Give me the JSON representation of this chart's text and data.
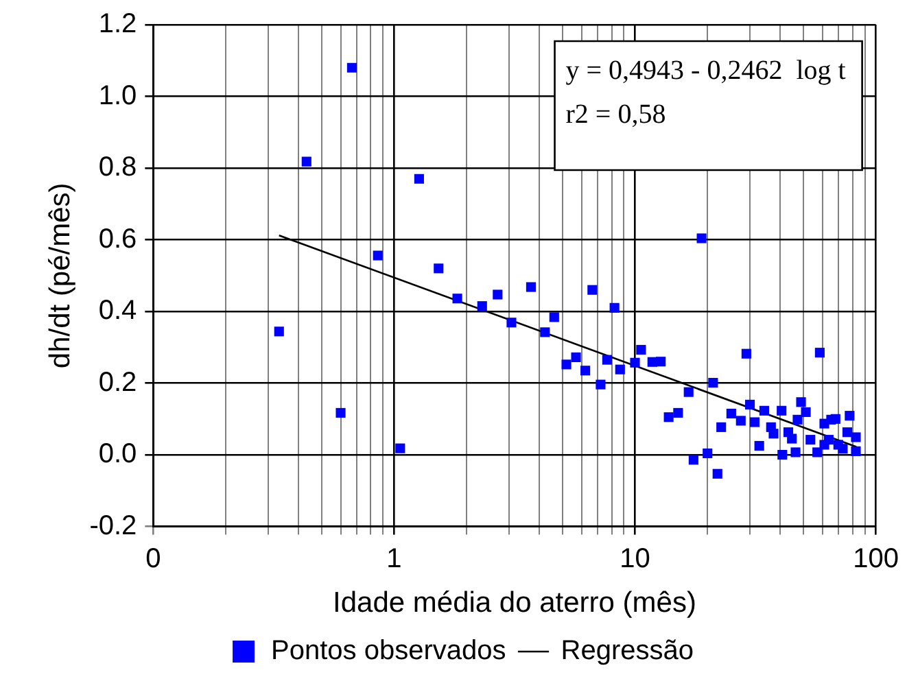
{
  "chart_data": {
    "type": "scatter",
    "xlabel": "Idade média do aterro (mês)",
    "ylabel": "dh/dt (pé/mês)",
    "log": "x",
    "grid": true,
    "legend": "bottom",
    "marker": "square",
    "xlim": [
      0.1,
      100
    ],
    "xticks": [
      {
        "value": 0.1,
        "label": "0"
      },
      {
        "value": 0.2,
        "label": null
      },
      {
        "value": 0.3,
        "label": null
      },
      {
        "value": 0.4,
        "label": null
      },
      {
        "value": 0.5,
        "label": null
      },
      {
        "value": 0.6,
        "label": null
      },
      {
        "value": 0.7,
        "label": null
      },
      {
        "value": 0.8,
        "label": null
      },
      {
        "value": 0.9,
        "label": null
      },
      1,
      {
        "value": 2,
        "label": null
      },
      {
        "value": 3,
        "label": null
      },
      {
        "value": 4,
        "label": null
      },
      {
        "value": 5,
        "label": null
      },
      {
        "value": 6,
        "label": null
      },
      {
        "value": 7,
        "label": null
      },
      {
        "value": 8,
        "label": null
      },
      {
        "value": 9,
        "label": null
      },
      10,
      {
        "value": 20,
        "label": null
      },
      {
        "value": 30,
        "label": null
      },
      {
        "value": 40,
        "label": null
      },
      {
        "value": 50,
        "label": null
      },
      {
        "value": 60,
        "label": null
      },
      {
        "value": 70,
        "label": null
      },
      {
        "value": 80,
        "label": null
      },
      {
        "value": 90,
        "label": null
      },
      100
    ],
    "ylim": [
      -0.2,
      1.2
    ],
    "yticks": [
      -0.2,
      {
        "value": 0,
        "label": "0.0"
      },
      0.2,
      0.4,
      0.6,
      0.8,
      {
        "value": 1,
        "label": "1.0"
      },
      1.2
    ],
    "annotations": [
      "y = 0,4943 - 0,2462  log t",
      "r2 = 0,58"
    ],
    "series": [
      {
        "name": "Pontos observados",
        "color": "#0000ff",
        "x": [
          0.668,
          0.433,
          0.856,
          0.333,
          0.6,
          1.06,
          1.27,
          1.53,
          1.83,
          2.32,
          2.69,
          3.07,
          3.7,
          4.62,
          4.23,
          6.65,
          8.22,
          5.19,
          5.69,
          6.22,
          7.2,
          7.66,
          8.67,
          10.0,
          10.6,
          11.8,
          12.8,
          18.9,
          29.0,
          58.5,
          16.7,
          21.1,
          13.8,
          15.1,
          17.5,
          20.0,
          22.0,
          22.8,
          25.1,
          27.5,
          30.0,
          31.4,
          34.4,
          32.8,
          36.7,
          40.6,
          40.9,
          43.3,
          46.4,
          48.9,
          51.2,
          47.3,
          53.5,
          57.1,
          61.1,
          65.2,
          68.0,
          63.7,
          69.8,
          77.8,
          76.1,
          82.6,
          82.6,
          72.9,
          61.1,
          44.8,
          37.6
        ],
        "values": [
          1.08,
          0.818,
          0.556,
          0.344,
          0.117,
          0.018,
          0.77,
          0.52,
          0.436,
          0.415,
          0.447,
          0.369,
          0.468,
          0.384,
          0.342,
          0.46,
          0.41,
          0.252,
          0.272,
          0.235,
          0.196,
          0.265,
          0.238,
          0.257,
          0.293,
          0.259,
          0.26,
          0.604,
          0.282,
          0.285,
          0.175,
          0.201,
          0.105,
          0.117,
          -0.014,
          0.004,
          -0.053,
          0.077,
          0.115,
          0.095,
          0.14,
          0.091,
          0.123,
          0.025,
          0.077,
          0.123,
          0.0,
          0.063,
          0.007,
          0.147,
          0.119,
          0.098,
          0.042,
          0.007,
          0.087,
          0.098,
          0.1,
          0.042,
          0.028,
          0.109,
          0.063,
          0.049,
          0.01,
          0.017,
          0.028,
          0.045,
          0.059
        ]
      },
      {
        "name": "Regressão",
        "type": "line",
        "color": "#000000",
        "marker": "none",
        "x": [
          0.333,
          83
        ],
        "values": [
          0.612,
          0.022
        ]
      }
    ]
  }
}
